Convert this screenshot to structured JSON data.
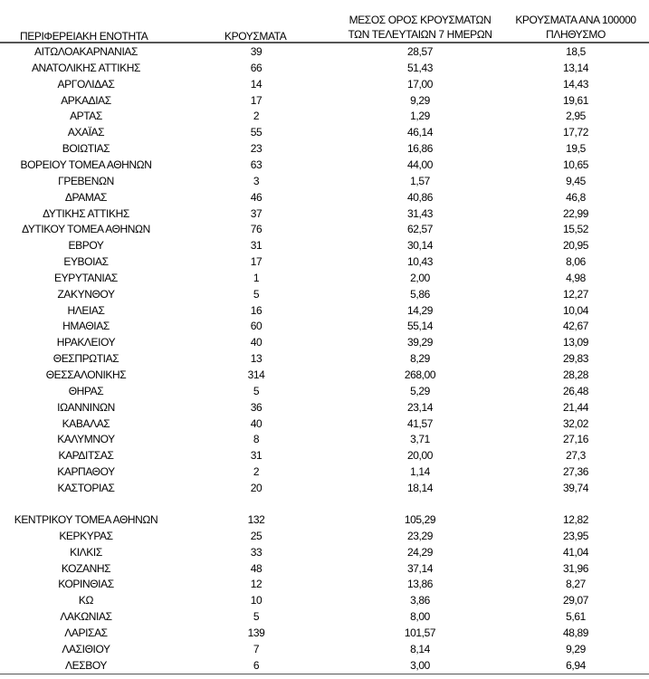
{
  "headers": {
    "region": "ΠΕΡΙΦΕΡΕΙΑΚΗ ΕΝΟΤΗΤΑ",
    "cases": "ΚΡΟΥΣΜΑΤΑ",
    "avg_line1": "ΜΕΣΟΣ ΟΡΟΣ ΚΡΟΥΣΜΑΤΩΝ",
    "avg_line2": "ΤΩΝ ΤΕΛΕΥΤΑΙΩΝ 7 ΗΜΕΡΩΝ",
    "per100k_line1": "ΚΡΟΥΣΜΑΤΑ ΑΝΑ 100000",
    "per100k_line2": "ΠΛΗΘΥΣΜΟ"
  },
  "groups": [
    [
      [
        "ΑΙΤΩΛΟΑΚΑΡΝΑΝΙΑΣ",
        "39",
        "28,57",
        "18,5"
      ],
      [
        "ΑΝΑΤΟΛΙΚΗΣ ΑΤΤΙΚΗΣ",
        "66",
        "51,43",
        "13,14"
      ],
      [
        "ΑΡΓΟΛΙΔΑΣ",
        "14",
        "17,00",
        "14,43"
      ],
      [
        "ΑΡΚΑΔΙΑΣ",
        "17",
        "9,29",
        "19,61"
      ],
      [
        "ΑΡΤΑΣ",
        "2",
        "1,29",
        "2,95"
      ],
      [
        "ΑΧΑΪΑΣ",
        "55",
        "46,14",
        "17,72"
      ],
      [
        "ΒΟΙΩΤΙΑΣ",
        "23",
        "16,86",
        "19,5"
      ],
      [
        "ΒΟΡΕΙΟΥ ΤΟΜΕΑ ΑΘΗΝΩΝ",
        "63",
        "44,00",
        "10,65"
      ],
      [
        "ΓΡΕΒΕΝΩΝ",
        "3",
        "1,57",
        "9,45"
      ],
      [
        "ΔΡΑΜΑΣ",
        "46",
        "40,86",
        "46,8"
      ],
      [
        "ΔΥΤΙΚΗΣ ΑΤΤΙΚΗΣ",
        "37",
        "31,43",
        "22,99"
      ],
      [
        "ΔΥΤΙΚΟΥ ΤΟΜΕΑ ΑΘΗΝΩΝ",
        "76",
        "62,57",
        "15,52"
      ],
      [
        "ΕΒΡΟΥ",
        "31",
        "30,14",
        "20,95"
      ],
      [
        "ΕΥΒΟΙΑΣ",
        "17",
        "10,43",
        "8,06"
      ],
      [
        "ΕΥΡΥΤΑΝΙΑΣ",
        "1",
        "2,00",
        "4,98"
      ],
      [
        "ΖΑΚΥΝΘΟΥ",
        "5",
        "5,86",
        "12,27"
      ],
      [
        "ΗΛΕΙΑΣ",
        "16",
        "14,29",
        "10,04"
      ],
      [
        "ΗΜΑΘΙΑΣ",
        "60",
        "55,14",
        "42,67"
      ],
      [
        "ΗΡΑΚΛΕΙΟΥ",
        "40",
        "39,29",
        "13,09"
      ],
      [
        "ΘΕΣΠΡΩΤΙΑΣ",
        "13",
        "8,29",
        "29,83"
      ],
      [
        "ΘΕΣΣΑΛΟΝΙΚΗΣ",
        "314",
        "268,00",
        "28,28"
      ],
      [
        "ΘΗΡΑΣ",
        "5",
        "5,29",
        "26,48"
      ],
      [
        "ΙΩΑΝΝΙΝΩΝ",
        "36",
        "23,14",
        "21,44"
      ],
      [
        "ΚΑΒΑΛΑΣ",
        "40",
        "41,57",
        "32,02"
      ],
      [
        "ΚΑΛΥΜΝΟΥ",
        "8",
        "3,71",
        "27,16"
      ],
      [
        "ΚΑΡΔΙΤΣΑΣ",
        "31",
        "20,00",
        "27,3"
      ],
      [
        "ΚΑΡΠΑΘΟΥ",
        "2",
        "1,14",
        "27,36"
      ],
      [
        "ΚΑΣΤΟΡΙΑΣ",
        "20",
        "18,14",
        "39,74"
      ]
    ],
    [
      [
        "ΚΕΝΤΡΙΚΟΥ ΤΟΜΕΑ ΑΘΗΝΩΝ",
        "132",
        "105,29",
        "12,82"
      ],
      [
        "ΚΕΡΚΥΡΑΣ",
        "25",
        "23,29",
        "23,95"
      ],
      [
        "ΚΙΛΚΙΣ",
        "33",
        "24,29",
        "41,04"
      ],
      [
        "ΚΟΖΑΝΗΣ",
        "48",
        "37,14",
        "31,96"
      ],
      [
        "ΚΟΡΙΝΘΙΑΣ",
        "12",
        "13,86",
        "8,27"
      ],
      [
        "ΚΩ",
        "10",
        "3,86",
        "29,07"
      ],
      [
        "ΛΑΚΩΝΙΑΣ",
        "5",
        "8,00",
        "5,61"
      ],
      [
        "ΛΑΡΙΣΑΣ",
        "139",
        "101,57",
        "48,89"
      ],
      [
        "ΛΑΣΙΘΙΟΥ",
        "7",
        "8,14",
        "9,29"
      ],
      [
        "ΛΕΣΒΟΥ",
        "6",
        "3,00",
        "6,94"
      ]
    ]
  ]
}
